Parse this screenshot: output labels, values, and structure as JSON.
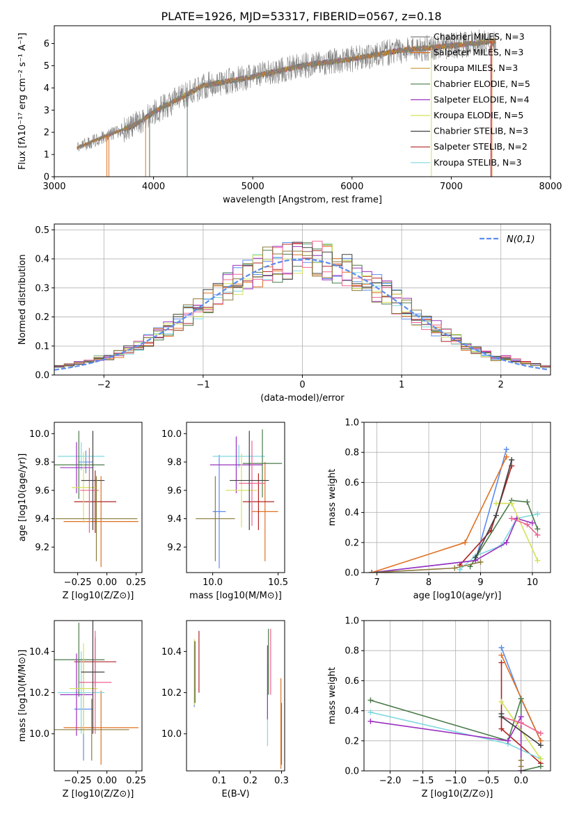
{
  "figure": {
    "title": "PLATE=1926, MJD=53317, FIBERID=0567, z=0.18"
  },
  "palette": [
    "#7f7f7f",
    "#ff7f0e",
    "#d62728",
    "#17becf",
    "#2ca02c",
    "#9467bd",
    "#bcbd22",
    "#ff69b4",
    "#1f77b4",
    "#8c564b"
  ],
  "series_styles": [
    {
      "name": "Chabrier MILES, N_SSP=3",
      "color": "#808080"
    },
    {
      "name": "Salpeter MILES, N_SSP=3",
      "color": "#e07020"
    },
    {
      "name": "Kroupa MILES, N_SSP=3",
      "color": "#c8962d"
    },
    {
      "name": "Chabrier ELODIE, N_SSP=5",
      "color": "#4a7a4a"
    },
    {
      "name": "Salpeter ELODIE, N_SSP=4",
      "color": "#9b30c0"
    },
    {
      "name": "Kroupa ELODIE, N_SSP=5",
      "color": "#d4e157"
    },
    {
      "name": "Chabrier STELIB, N_SSP=3",
      "color": "#404040"
    },
    {
      "name": "Salpeter STELIB, N_SSP=2",
      "color": "#b22222"
    },
    {
      "name": "Kroupa STELIB, N_SSP=3",
      "color": "#7fd8e0"
    }
  ],
  "chart_data": [
    {
      "id": "spectrum",
      "type": "line",
      "title": "PLATE=1926, MJD=53317, FIBERID=0567, z=0.18",
      "xlabel": "wavelength [Angstrom, rest frame]",
      "ylabel": "Flux [fλ10⁻¹⁷ erg cm⁻² s⁻¹ A⁻¹]",
      "xlim": [
        3000,
        8000
      ],
      "ylim": [
        0,
        6.8
      ],
      "xticks": [
        3000,
        4000,
        5000,
        6000,
        7000,
        8000
      ],
      "yticks": [
        0,
        1,
        2,
        3,
        4,
        5,
        6
      ],
      "legend": "right",
      "legend_entries": [
        "Chabrier MILES, N_SSP=3",
        "Salpeter MILES, N_SSP=3",
        "Kroupa MILES, N_SSP=3",
        "Chabrier ELODIE, N_SSP=5",
        "Salpeter ELODIE, N_SSP=4",
        "Kroupa ELODIE, N_SSP=5",
        "Chabrier STELIB, N_SSP=3",
        "Salpeter STELIB, N_SSP=2",
        "Kroupa STELIB, N_SSP=3"
      ],
      "data_trend": {
        "x": [
          3230,
          3500,
          3800,
          4000,
          4500,
          5000,
          5500,
          6000,
          6500,
          7000,
          7400
        ],
        "y": [
          1.3,
          1.8,
          2.3,
          2.9,
          4.1,
          4.5,
          5.0,
          5.3,
          5.7,
          5.9,
          6.1
        ]
      }
    },
    {
      "id": "residuals",
      "type": "line",
      "xlabel": "(data-model)/error",
      "ylabel": "Normed distribution",
      "xlim": [
        -2.5,
        2.5
      ],
      "ylim": [
        0,
        0.52
      ],
      "xticks": [
        -2,
        -1,
        0,
        1,
        2
      ],
      "yticks": [
        0.0,
        0.1,
        0.2,
        0.3,
        0.4,
        0.5
      ],
      "grid": true,
      "legend": "top-right",
      "legend_entries": [
        "N(0,1)"
      ],
      "normal": {
        "mu": 0,
        "sigma": 1
      }
    },
    {
      "id": "Z_age",
      "type": "scatter",
      "xlabel": "Z [log10(Z/Z⊙)]",
      "ylabel": "age  [log10(age/yr)]",
      "xlim": [
        -0.45,
        0.3
      ],
      "ylim": [
        9.02,
        10.08
      ],
      "xticks": [
        -0.25,
        0.0,
        0.25
      ],
      "yticks": [
        9.2,
        9.4,
        9.6,
        9.8,
        10.0
      ],
      "points": [
        {
          "series": 0,
          "x": -0.18,
          "y": 9.8,
          "xe": 0.06,
          "ye": 0.08
        },
        {
          "series": 1,
          "x": -0.05,
          "y": 9.38,
          "xe": 0.32,
          "ye": 0.32
        },
        {
          "series": 2,
          "x": -0.1,
          "y": 9.52,
          "xe": 0.18,
          "ye": 0.22
        },
        {
          "series": 3,
          "x": -0.22,
          "y": 9.84,
          "xe": 0.2,
          "ye": 0.1
        },
        {
          "series": 4,
          "x": -0.24,
          "y": 9.78,
          "xe": 0.22,
          "ye": 0.24
        },
        {
          "series": 5,
          "x": -0.26,
          "y": 9.76,
          "xe": 0.14,
          "ye": 0.18
        },
        {
          "series": 6,
          "x": -0.2,
          "y": 9.62,
          "xe": 0.1,
          "ye": 0.25
        },
        {
          "series": 7,
          "x": -0.15,
          "y": 9.6,
          "xe": 0.08,
          "ye": 0.3
        },
        {
          "series": 8,
          "x": -0.12,
          "y": 9.67,
          "xe": 0.1,
          "ye": 0.35
        },
        {
          "series": 9,
          "x": -0.09,
          "y": 9.4,
          "xe": 0.35,
          "ye": 0.3
        }
      ]
    },
    {
      "id": "mass_age",
      "type": "scatter",
      "xlabel": "mass [log10(M/M⊙)]",
      "ylabel": "",
      "xlim": [
        9.8,
        10.55
      ],
      "ylim": [
        9.02,
        10.08
      ],
      "xticks": [
        10.0,
        10.5
      ],
      "yticks": [
        9.2,
        9.4,
        9.6,
        9.8,
        10.0
      ],
      "points": [
        {
          "series": 0,
          "x": 10.05,
          "y": 9.45,
          "xe": 0.05,
          "ye": 0.4
        },
        {
          "series": 1,
          "x": 10.4,
          "y": 9.45,
          "xe": 0.1,
          "ye": 0.35
        },
        {
          "series": 2,
          "x": 10.35,
          "y": 9.52,
          "xe": 0.12,
          "ye": 0.2
        },
        {
          "series": 3,
          "x": 10.2,
          "y": 9.84,
          "xe": 0.2,
          "ye": 0.08
        },
        {
          "series": 4,
          "x": 10.38,
          "y": 9.79,
          "xe": 0.15,
          "ye": 0.24
        },
        {
          "series": 5,
          "x": 10.18,
          "y": 9.78,
          "xe": 0.2,
          "ye": 0.2
        },
        {
          "series": 6,
          "x": 10.22,
          "y": 9.6,
          "xe": 0.12,
          "ye": 0.26
        },
        {
          "series": 7,
          "x": 10.3,
          "y": 9.65,
          "xe": 0.1,
          "ye": 0.3
        },
        {
          "series": 8,
          "x": 10.28,
          "y": 9.67,
          "xe": 0.15,
          "ye": 0.35
        },
        {
          "series": 9,
          "x": 10.02,
          "y": 9.4,
          "xe": 0.15,
          "ye": 0.3
        }
      ]
    },
    {
      "id": "age_weight",
      "type": "line",
      "xlabel": "age  [log10(age/yr)]",
      "ylabel": "mass weight",
      "xlim": [
        6.75,
        10.35
      ],
      "ylim": [
        0,
        1.0
      ],
      "xticks": [
        7,
        8,
        9,
        10
      ],
      "yticks": [
        0.0,
        0.2,
        0.4,
        0.6,
        0.8,
        1.0
      ],
      "grid": true,
      "series": [
        {
          "name": "s0",
          "x": [
            6.9,
            8.9,
            9.5
          ],
          "y": [
            0.0,
            0.08,
            0.82
          ]
        },
        {
          "name": "s1",
          "x": [
            6.9,
            8.7,
            9.5
          ],
          "y": [
            0.0,
            0.2,
            0.77
          ]
        },
        {
          "name": "s2",
          "x": [
            8.6,
            9.2,
            9.6
          ],
          "y": [
            0.05,
            0.28,
            0.71
          ]
        },
        {
          "name": "s3",
          "x": [
            8.6,
            8.9,
            9.4,
            9.7,
            10.1
          ],
          "y": [
            0.02,
            0.11,
            0.18,
            0.36,
            0.39
          ]
        },
        {
          "name": "s4",
          "x": [
            8.8,
            9.6,
            9.9,
            10.1
          ],
          "y": [
            0.04,
            0.48,
            0.47,
            0.29
          ]
        },
        {
          "name": "s5",
          "x": [
            6.9,
            8.9,
            9.5,
            9.7,
            10.0
          ],
          "y": [
            0.0,
            0.08,
            0.2,
            0.36,
            0.33
          ]
        },
        {
          "name": "s6",
          "x": [
            9.3,
            9.6,
            10.1
          ],
          "y": [
            0.46,
            0.46,
            0.08
          ]
        },
        {
          "name": "s7",
          "x": [
            9.6,
            9.9,
            10.1
          ],
          "y": [
            0.36,
            0.32,
            0.25
          ]
        },
        {
          "name": "s8",
          "x": [
            8.9,
            9.3,
            9.6
          ],
          "y": [
            0.1,
            0.38,
            0.75
          ]
        },
        {
          "name": "s9",
          "x": [
            6.9,
            8.5,
            9.0
          ],
          "y": [
            0.0,
            0.03,
            0.07
          ]
        }
      ]
    },
    {
      "id": "Z_mass",
      "type": "scatter",
      "xlabel": "Z [log10(Z/Z⊙)]",
      "ylabel": "mass [log10(M/M⊙)]",
      "xlim": [
        -0.45,
        0.3
      ],
      "ylim": [
        9.82,
        10.55
      ],
      "xticks": [
        -0.25,
        0.0,
        0.25
      ],
      "yticks": [
        10.0,
        10.2,
        10.4
      ],
      "points": [
        {
          "series": 0,
          "x": -0.2,
          "y": 10.12,
          "xe": 0.08,
          "ye": 0.25
        },
        {
          "series": 1,
          "x": -0.05,
          "y": 10.03,
          "xe": 0.32,
          "ye": 0.18
        },
        {
          "series": 2,
          "x": -0.1,
          "y": 10.35,
          "xe": 0.18,
          "ye": 0.12
        },
        {
          "series": 3,
          "x": -0.22,
          "y": 10.2,
          "xe": 0.2,
          "ye": 0.2
        },
        {
          "series": 4,
          "x": -0.24,
          "y": 10.36,
          "xe": 0.22,
          "ye": 0.18
        },
        {
          "series": 5,
          "x": -0.26,
          "y": 10.19,
          "xe": 0.14,
          "ye": 0.2
        },
        {
          "series": 6,
          "x": -0.2,
          "y": 10.22,
          "xe": 0.12,
          "ye": 0.22
        },
        {
          "series": 7,
          "x": -0.1,
          "y": 10.25,
          "xe": 0.14,
          "ye": 0.25
        },
        {
          "series": 8,
          "x": -0.12,
          "y": 10.3,
          "xe": 0.1,
          "ye": 0.3
        },
        {
          "series": 9,
          "x": -0.13,
          "y": 10.02,
          "xe": 0.32,
          "ye": 0.15
        }
      ]
    },
    {
      "id": "ebv_mass",
      "type": "scatter",
      "xlabel": "E(B-V)",
      "ylabel": "",
      "xlim": [
        -0.005,
        0.31
      ],
      "ylim": [
        9.82,
        10.55
      ],
      "xticks": [
        0.1,
        0.2,
        0.3
      ],
      "yticks": [
        10.0,
        10.2,
        10.4
      ],
      "points": [
        {
          "series": 0,
          "x": 0.02,
          "y": 10.28,
          "xe": 0,
          "ye": 0.15
        },
        {
          "series": 1,
          "x": 0.298,
          "y": 10.05,
          "xe": 0,
          "ye": 0.22
        },
        {
          "series": 2,
          "x": 0.035,
          "y": 10.35,
          "xe": 0,
          "ye": 0.15
        },
        {
          "series": 3,
          "x": 0.255,
          "y": 10.14,
          "xe": 0,
          "ye": 0.2
        },
        {
          "series": 4,
          "x": 0.258,
          "y": 10.35,
          "xe": 0,
          "ye": 0.16
        },
        {
          "series": 5,
          "x": 0.255,
          "y": 10.25,
          "xe": 0,
          "ye": 0.18
        },
        {
          "series": 6,
          "x": 0.02,
          "y": 10.3,
          "xe": 0,
          "ye": 0.16
        },
        {
          "series": 7,
          "x": 0.265,
          "y": 10.35,
          "xe": 0,
          "ye": 0.16
        },
        {
          "series": 8,
          "x": 0.022,
          "y": 10.3,
          "xe": 0,
          "ye": 0.15
        },
        {
          "series": 9,
          "x": 0.3,
          "y": 10.0,
          "xe": 0,
          "ye": 0.15
        }
      ]
    },
    {
      "id": "Z_weight",
      "type": "line",
      "xlabel": "Z [log10(Z/Z⊙)]",
      "ylabel": "mass weight",
      "xlim": [
        -2.4,
        0.45
      ],
      "ylim": [
        0,
        1.0
      ],
      "xticks": [
        -2.0,
        -1.5,
        -1.0,
        -0.5,
        0.0
      ],
      "yticks": [
        0.0,
        0.2,
        0.4,
        0.6,
        0.8,
        1.0
      ],
      "grid": true,
      "series": [
        {
          "name": "s0",
          "x": [
            -0.3,
            0.0,
            0.3
          ],
          "y": [
            0.82,
            0.48,
            0.2
          ]
        },
        {
          "name": "s1",
          "x": [
            -0.3,
            0.3
          ],
          "y": [
            0.77,
            0.2
          ]
        },
        {
          "name": "s2",
          "x": [
            -0.3,
            -0.3,
            0.3
          ],
          "y": [
            0.72,
            0.28,
            0.05
          ]
        },
        {
          "name": "s3",
          "x": [
            -2.3,
            -0.2,
            0.3
          ],
          "y": [
            0.39,
            0.18,
            0.08
          ]
        },
        {
          "name": "s4",
          "x": [
            -2.3,
            -0.2,
            0.0,
            0.0,
            0.3
          ],
          "y": [
            0.47,
            0.2,
            0.48,
            0.0,
            0.03
          ]
        },
        {
          "name": "s5",
          "x": [
            -2.3,
            -0.2,
            0.0,
            0.0
          ],
          "y": [
            0.33,
            0.2,
            0.36,
            0.0
          ]
        },
        {
          "name": "s6",
          "x": [
            -0.3,
            -0.3,
            0.3
          ],
          "y": [
            0.46,
            0.46,
            0.08
          ]
        },
        {
          "name": "s7",
          "x": [
            -0.3,
            0.0,
            0.3
          ],
          "y": [
            0.36,
            0.32,
            0.25
          ]
        },
        {
          "name": "s8",
          "x": [
            -0.3,
            -0.3,
            0.3
          ],
          "y": [
            0.38,
            0.36,
            0.17
          ]
        },
        {
          "name": "s9",
          "x": [
            0.0,
            0.0
          ],
          "y": [
            0.03,
            0.07
          ]
        }
      ]
    }
  ]
}
